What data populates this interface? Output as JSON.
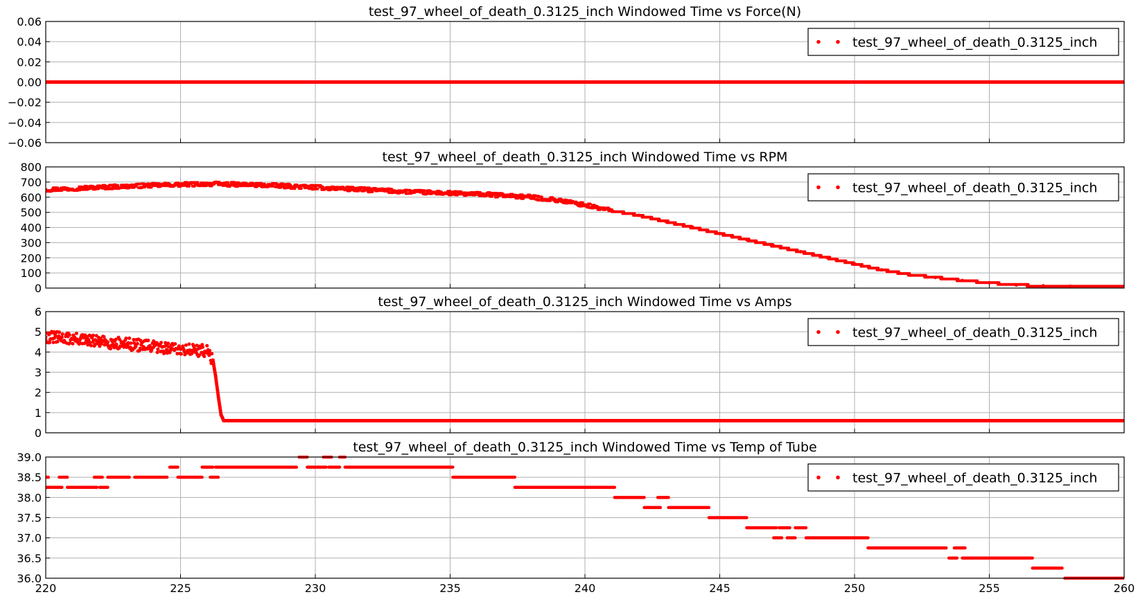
{
  "style": {
    "series_color": "#ff0000",
    "grid_color": "#b0b0b0"
  },
  "chart_data": [
    {
      "type": "scatter",
      "title": "test_97_wheel_of_death_0.3125_inch Windowed Time vs Force(N)",
      "xlabel": "",
      "ylabel": "",
      "xlim": [
        220,
        260
      ],
      "ylim": [
        -0.06,
        0.06
      ],
      "yticks": [
        "0.06",
        "0.04",
        "0.02",
        "0.00",
        "−0.02",
        "−0.04",
        "−0.06"
      ],
      "xticks": [],
      "grid": true,
      "legend": {
        "placement": "upper right",
        "entries": [
          "test_97_wheel_of_death_0.3125_inch"
        ]
      },
      "series": [
        {
          "name": "test_97_wheel_of_death_0.3125_inch",
          "x": [
            220,
            222,
            224,
            226,
            228,
            230,
            232,
            234,
            236,
            238,
            240,
            242,
            244,
            246,
            248,
            250,
            252,
            254,
            256,
            258,
            260
          ],
          "y": [
            0,
            0,
            0,
            0,
            0,
            0,
            0,
            0,
            0,
            0,
            0,
            0,
            0,
            0,
            0,
            0,
            0,
            0,
            0,
            0,
            0
          ]
        }
      ]
    },
    {
      "type": "scatter",
      "title": "test_97_wheel_of_death_0.3125_inch Windowed Time vs RPM",
      "xlabel": "",
      "ylabel": "",
      "xlim": [
        220,
        260
      ],
      "ylim": [
        0,
        800
      ],
      "yticks": [
        "800",
        "700",
        "600",
        "500",
        "400",
        "300",
        "200",
        "100",
        "0"
      ],
      "xticks": [],
      "grid": true,
      "legend": {
        "placement": "upper right",
        "entries": [
          "test_97_wheel_of_death_0.3125_inch"
        ]
      },
      "series": [
        {
          "name": "test_97_wheel_of_death_0.3125_inch",
          "x": [
            220,
            222,
            224,
            226,
            228,
            230,
            232,
            234,
            236,
            237,
            238,
            239,
            240,
            241,
            242,
            243,
            244,
            245,
            246,
            247,
            248,
            249,
            250,
            251,
            252,
            253,
            254,
            255,
            256,
            257,
            258,
            260
          ],
          "y": [
            650,
            665,
            678,
            688,
            680,
            665,
            648,
            632,
            620,
            612,
            600,
            580,
            548,
            510,
            480,
            440,
            400,
            360,
            320,
            280,
            240,
            200,
            160,
            120,
            90,
            70,
            50,
            35,
            20,
            15,
            12,
            12
          ]
        }
      ]
    },
    {
      "type": "scatter",
      "title": "test_97_wheel_of_death_0.3125_inch Windowed Time vs Amps",
      "xlabel": "",
      "ylabel": "",
      "xlim": [
        220,
        260
      ],
      "ylim": [
        0,
        6
      ],
      "yticks": [
        "6",
        "5",
        "4",
        "3",
        "2",
        "1",
        "0"
      ],
      "xticks": [],
      "grid": true,
      "legend": {
        "placement": "upper right",
        "entries": [
          "test_97_wheel_of_death_0.3125_inch"
        ]
      },
      "series": [
        {
          "name": "test_97_wheel_of_death_0.3125_inch",
          "x": [
            220,
            221,
            222,
            223,
            224,
            225,
            226,
            226.2,
            226.3,
            226.4,
            226.5,
            226.6,
            227,
            230,
            235,
            240,
            245,
            250,
            255,
            260
          ],
          "y": [
            4.75,
            4.65,
            4.5,
            4.4,
            4.25,
            4.15,
            4.05,
            3.6,
            2.8,
            1.8,
            0.9,
            0.6,
            0.6,
            0.6,
            0.6,
            0.6,
            0.6,
            0.6,
            0.6,
            0.6
          ]
        }
      ]
    },
    {
      "type": "scatter",
      "title": "test_97_wheel_of_death_0.3125_inch Windowed Time vs Temp of Tube",
      "xlabel": "",
      "ylabel": "",
      "xlim": [
        220,
        260
      ],
      "ylim": [
        36.0,
        39.0
      ],
      "yticks": [
        "39.0",
        "38.5",
        "38.0",
        "37.5",
        "37.0",
        "36.5",
        "36.0"
      ],
      "xticks": [
        "220",
        "225",
        "230",
        "235",
        "240",
        "245",
        "250",
        "255",
        "260"
      ],
      "grid": true,
      "legend": {
        "placement": "upper right",
        "entries": [
          "test_97_wheel_of_death_0.3125_inch"
        ]
      },
      "series": [
        {
          "name": "test_97_wheel_of_death_0.3125_inch",
          "segments": [
            [
              220.0,
              220.1,
              38.5
            ],
            [
              220.0,
              220.6,
              38.25
            ],
            [
              220.5,
              220.8,
              38.5
            ],
            [
              220.8,
              221.9,
              38.25
            ],
            [
              221.8,
              222.1,
              38.5
            ],
            [
              222.0,
              222.3,
              38.25
            ],
            [
              222.3,
              223.1,
              38.5
            ],
            [
              223.3,
              224.5,
              38.5
            ],
            [
              224.6,
              224.9,
              38.75
            ],
            [
              224.9,
              225.8,
              38.5
            ],
            [
              225.8,
              226.2,
              38.75
            ],
            [
              226.1,
              226.4,
              38.5
            ],
            [
              226.3,
              229.3,
              38.75
            ],
            [
              229.4,
              229.7,
              39.0
            ],
            [
              229.7,
              230.4,
              38.75
            ],
            [
              230.3,
              230.6,
              39.0
            ],
            [
              230.5,
              230.9,
              38.75
            ],
            [
              230.9,
              231.1,
              39.0
            ],
            [
              231.1,
              235.1,
              38.75
            ],
            [
              235.1,
              237.4,
              38.5
            ],
            [
              237.4,
              241.1,
              38.25
            ],
            [
              241.1,
              242.2,
              38.0
            ],
            [
              242.2,
              242.8,
              37.75
            ],
            [
              242.7,
              243.1,
              38.0
            ],
            [
              243.1,
              244.6,
              37.75
            ],
            [
              244.6,
              246.0,
              37.5
            ],
            [
              246.0,
              247.1,
              37.25
            ],
            [
              247.0,
              247.3,
              37.0
            ],
            [
              247.2,
              247.6,
              37.25
            ],
            [
              247.5,
              247.8,
              37.0
            ],
            [
              247.8,
              248.2,
              37.25
            ],
            [
              248.2,
              250.5,
              37.0
            ],
            [
              250.5,
              253.4,
              36.75
            ],
            [
              253.5,
              253.8,
              36.5
            ],
            [
              253.7,
              254.1,
              36.75
            ],
            [
              254.0,
              256.6,
              36.5
            ],
            [
              256.6,
              257.7,
              36.25
            ],
            [
              257.8,
              260.0,
              36.0
            ]
          ]
        }
      ]
    }
  ]
}
